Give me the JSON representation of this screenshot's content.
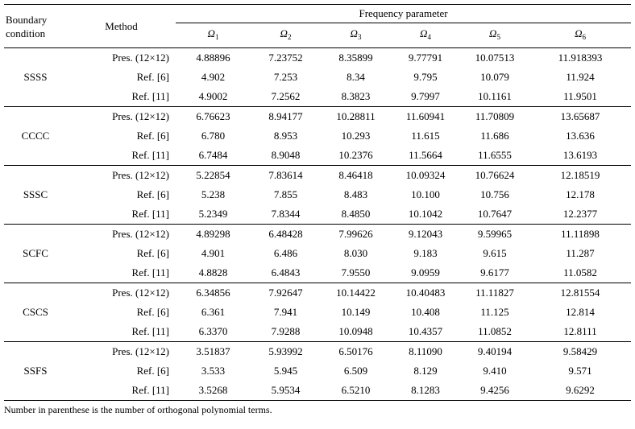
{
  "header": {
    "boundary": "Boundary condition",
    "method": "Method",
    "freq": "Frequency parameter",
    "omegas": [
      {
        "sym": "Ω",
        "sub": "1"
      },
      {
        "sym": "Ω",
        "sub": "2"
      },
      {
        "sym": "Ω",
        "sub": "3"
      },
      {
        "sym": "Ω",
        "sub": "4"
      },
      {
        "sym": "Ω",
        "sub": "5"
      },
      {
        "sym": "Ω",
        "sub": "6"
      }
    ]
  },
  "groups": [
    {
      "bc": "SSSS",
      "rows": [
        {
          "method": "Pres. (12×12)",
          "v": [
            "4.88896",
            "7.23752",
            "8.35899",
            "9.77791",
            "10.07513",
            "11.918393"
          ]
        },
        {
          "method": "Ref. [6]",
          "v": [
            "4.902",
            "7.253",
            "8.34",
            "9.795",
            "10.079",
            "11.924"
          ]
        },
        {
          "method": "Ref. [11]",
          "v": [
            "4.9002",
            "7.2562",
            "8.3823",
            "9.7997",
            "10.1161",
            "11.9501"
          ]
        }
      ]
    },
    {
      "bc": "CCCC",
      "rows": [
        {
          "method": "Pres. (12×12)",
          "v": [
            "6.76623",
            "8.94177",
            "10.28811",
            "11.60941",
            "11.70809",
            "13.65687"
          ]
        },
        {
          "method": "Ref. [6]",
          "v": [
            "6.780",
            "8.953",
            "10.293",
            "11.615",
            "11.686",
            "13.636"
          ]
        },
        {
          "method": "Ref. [11]",
          "v": [
            "6.7484",
            "8.9048",
            "10.2376",
            "11.5664",
            "11.6555",
            "13.6193"
          ]
        }
      ]
    },
    {
      "bc": "SSSC",
      "rows": [
        {
          "method": "Pres. (12×12)",
          "v": [
            "5.22854",
            "7.83614",
            "8.46418",
            "10.09324",
            "10.76624",
            "12.18519"
          ]
        },
        {
          "method": "Ref. [6]",
          "v": [
            "5.238",
            "7.855",
            "8.483",
            "10.100",
            "10.756",
            "12.178"
          ]
        },
        {
          "method": "Ref. [11]",
          "v": [
            "5.2349",
            "7.8344",
            "8.4850",
            "10.1042",
            "10.7647",
            "12.2377"
          ]
        }
      ]
    },
    {
      "bc": "SCFC",
      "rows": [
        {
          "method": "Pres. (12×12)",
          "v": [
            "4.89298",
            "6.48428",
            "7.99626",
            "9.12043",
            "9.59965",
            "11.11898"
          ]
        },
        {
          "method": "Ref. [6]",
          "v": [
            "4.901",
            "6.486",
            "8.030",
            "9.183",
            "9.615",
            "11.287"
          ]
        },
        {
          "method": "Ref. [11]",
          "v": [
            "4.8828",
            "6.4843",
            "7.9550",
            "9.0959",
            "9.6177",
            "11.0582"
          ]
        }
      ]
    },
    {
      "bc": "CSCS",
      "rows": [
        {
          "method": "Pres. (12×12)",
          "v": [
            "6.34856",
            "7.92647",
            "10.14422",
            "10.40483",
            "11.11827",
            "12.81554"
          ]
        },
        {
          "method": "Ref. [6]",
          "v": [
            "6.361",
            "7.941",
            "10.149",
            "10.408",
            "11.125",
            "12.814"
          ]
        },
        {
          "method": "Ref. [11]",
          "v": [
            "6.3370",
            "7.9288",
            "10.0948",
            "10.4357",
            "11.0852",
            "12.8111"
          ]
        }
      ]
    },
    {
      "bc": "SSFS",
      "rows": [
        {
          "method": "Pres. (12×12)",
          "v": [
            "3.51837",
            "5.93992",
            "6.50176",
            "8.11090",
            "9.40194",
            "9.58429"
          ]
        },
        {
          "method": "Ref. [6]",
          "v": [
            "3.533",
            "5.945",
            "6.509",
            "8.129",
            "9.410",
            "9.571"
          ]
        },
        {
          "method": "Ref. [11]",
          "v": [
            "3.5268",
            "5.9534",
            "6.5210",
            "8.1283",
            "9.4256",
            "9.6292"
          ]
        }
      ]
    }
  ],
  "footnote": "Number in parenthese is the number of orthogonal polynomial terms."
}
